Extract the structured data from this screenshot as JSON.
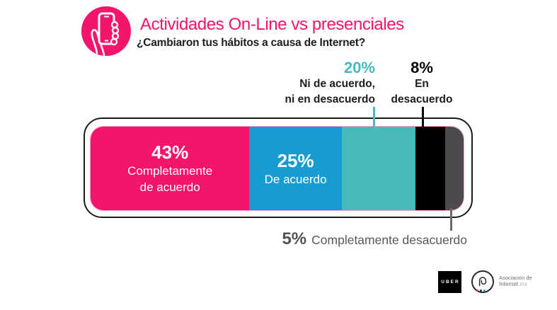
{
  "header": {
    "title": "Actividades On-Line vs presenciales",
    "subtitle": "¿Cambiaron tus hábitos a causa de Internet?",
    "icon": "hand-holding-phone-icon"
  },
  "colors": {
    "brand_pink": "#F4146B",
    "blue": "#169CD1",
    "teal": "#47BBBB",
    "black": "#000000",
    "dark_gray": "#4C4A4C",
    "muted_text": "#58595B"
  },
  "chart_data": {
    "type": "bar",
    "subtype": "horizontal-stacked",
    "title": "Actividades On-Line vs presenciales",
    "question": "¿Cambiaron tus hábitos a causa de Internet?",
    "categories": [
      "Completamente de acuerdo",
      "De acuerdo",
      "Ni de acuerdo, ni en desacuerdo",
      "En desacuerdo",
      "Completamente desacuerdo"
    ],
    "values": [
      43,
      25,
      20,
      8,
      5
    ],
    "unit": "%",
    "segments": [
      {
        "id": "completamente-de-acuerdo",
        "label": "Completamente de acuerdo",
        "value": 43,
        "pct": "43%",
        "color": "#F4146B",
        "label_position": "inside",
        "inside": {
          "pct": "43%",
          "lines": [
            "Completamente",
            "de acuerdo"
          ]
        }
      },
      {
        "id": "de-acuerdo",
        "label": "De acuerdo",
        "value": 25,
        "pct": "25%",
        "color": "#169CD1",
        "label_position": "inside",
        "inside": {
          "pct": "25%",
          "lines": [
            "De acuerdo"
          ]
        }
      },
      {
        "id": "ni-de-acuerdo-ni-en-desacuerdo",
        "label": "Ni de acuerdo, ni en desacuerdo",
        "value": 20,
        "pct": "20%",
        "color": "#47BBBB",
        "label_position": "above"
      },
      {
        "id": "en-desacuerdo",
        "label": "En desacuerdo",
        "value": 8,
        "pct": "8%",
        "color": "#000000",
        "label_position": "above"
      },
      {
        "id": "completamente-desacuerdo",
        "label": "Completamente desacuerdo",
        "value": 5,
        "pct": "5%",
        "color": "#4C4A4C",
        "label_position": "below"
      }
    ]
  },
  "callouts": {
    "neutral": {
      "pct": "20%",
      "line1": "Ni de acuerdo,",
      "line2": "ni en desacuerdo"
    },
    "disagree": {
      "pct": "8%",
      "line1": "En",
      "line2": "desacuerdo"
    },
    "strongly_disagree": {
      "pct": "5%",
      "label": "Completamente desacuerdo"
    }
  },
  "footer": {
    "uber_label": "UBER",
    "assoc_line1": "Asociación de",
    "assoc_name": "Internet",
    "assoc_tld": ".mx"
  }
}
